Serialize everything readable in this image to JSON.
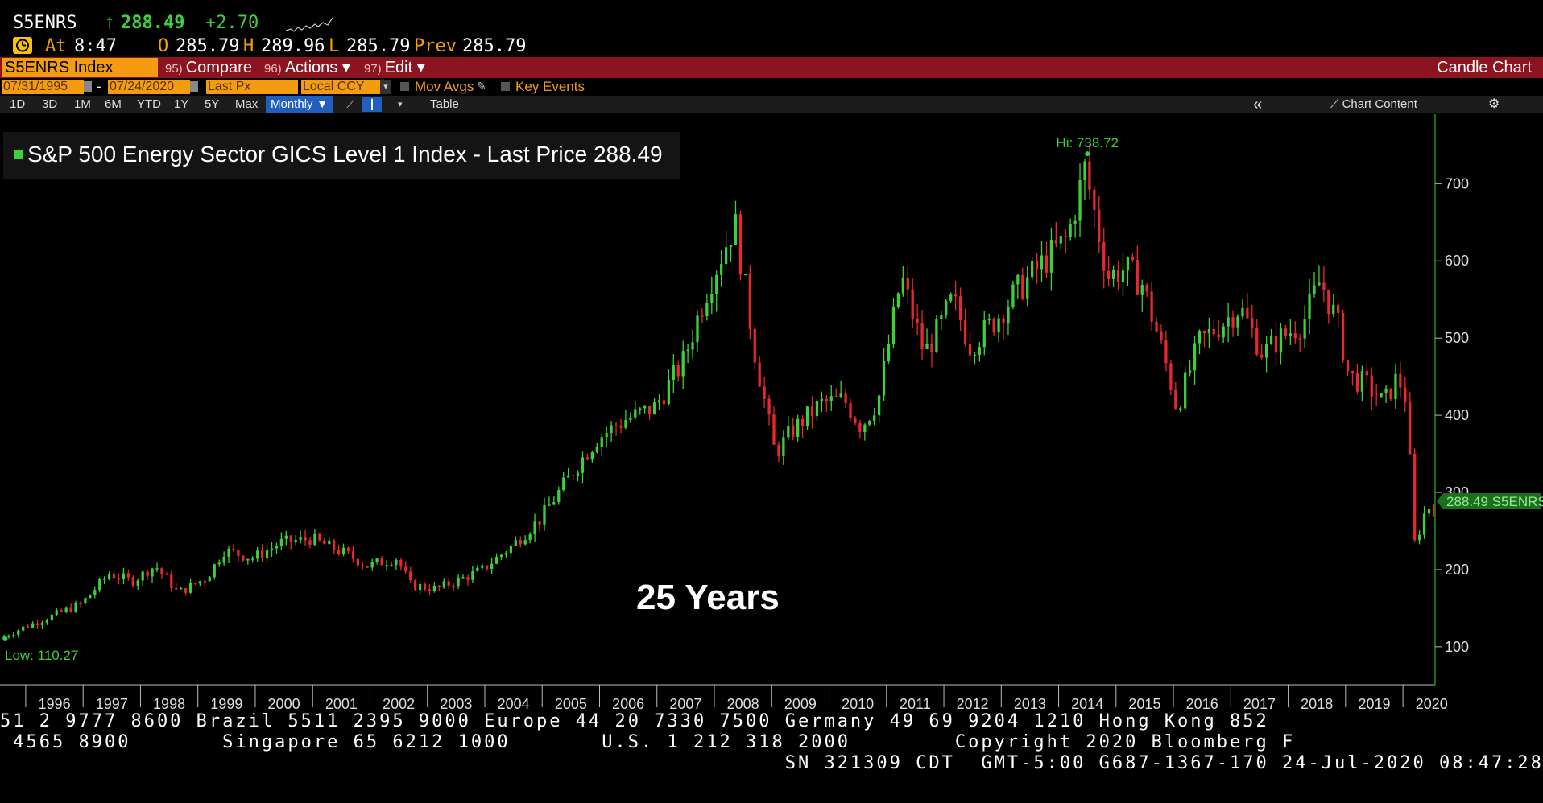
{
  "header": {
    "ticker": "S5ENRS",
    "arrow": "↑",
    "last": "288.49",
    "change": "+2.70",
    "at_label": "At",
    "at_time": "8:47",
    "open_label": "O",
    "open": "285.79",
    "high_label": "H",
    "high": "289.96",
    "low_label": "L",
    "low": "285.79",
    "prev_label": "Prev",
    "prev": "285.79"
  },
  "command_bar": {
    "security": "S5ENRS Index",
    "compare_num": "95)",
    "compare": "Compare",
    "actions_num": "96)",
    "actions": "Actions ▾",
    "edit_num": "97)",
    "edit": "Edit ▾",
    "chart_type": "Candle Chart"
  },
  "controls": {
    "start_date": "07/31/1995",
    "end_date": "07/24/2020",
    "date_sep": "-",
    "field": "Last Px",
    "currency": "Local CCY",
    "mov_avgs": "Mov Avgs",
    "key_events": "Key Events"
  },
  "periods": [
    "1D",
    "3D",
    "1M",
    "6M",
    "YTD",
    "1Y",
    "5Y",
    "Max"
  ],
  "period_selected": "Monthly ▼",
  "table_label": "Table",
  "collapse_label": "«",
  "chart_content": "Chart Content",
  "annotation": "25 Years",
  "tape": {
    "line1": "51 2 9777 8600 Brazil 5511 2395 9000 Europe 44 20 7330 7500 Germany 49 69 9204 1210 Hong Kong 852",
    "line2": " 4565 8900       Singapore 65 6212 1000       U.S. 1 212 318 2000        Copyright 2020 Bloomberg F",
    "line3": "                                                            SN 321309 CDT  GMT-5:00 G687-1367-170 24-Jul-2020 08:47:28"
  },
  "colors": {
    "up": "#3cd13c",
    "down": "#e8282c",
    "accent": "#f39c12",
    "bar": "#8c1420"
  },
  "chart_data": {
    "type": "candlestick",
    "title": "S&P 500 Energy Sector GICS Level 1 Index - Last Price 288.49",
    "frequency": "Monthly",
    "ylim": [
      55,
      790
    ],
    "yticks": [
      100,
      200,
      300,
      400,
      500,
      600,
      700
    ],
    "x_tick_labels": [
      "1996",
      "1997",
      "1998",
      "1999",
      "2000",
      "2001",
      "2002",
      "2003",
      "2004",
      "2005",
      "2006",
      "2007",
      "2008",
      "2009",
      "2010",
      "2011",
      "2012",
      "2013",
      "2014",
      "2015",
      "2016",
      "2017",
      "2018",
      "2019",
      "2020"
    ],
    "xlim": [
      1995.58,
      2020.56
    ],
    "hi_label": "Hi: 738.72",
    "hi": {
      "x": 2014.5,
      "y": 738.72
    },
    "low_label": "Low: 110.27",
    "low": {
      "x": 1995.6,
      "y": 110.27
    },
    "last_label": "288.49 S5ENRS",
    "last": 288.49,
    "anchors": [
      [
        1995.58,
        110.27
      ],
      [
        1996.0,
        125
      ],
      [
        1996.5,
        140
      ],
      [
        1997.0,
        155
      ],
      [
        1997.5,
        195
      ],
      [
        1997.9,
        185
      ],
      [
        1998.3,
        205
      ],
      [
        1998.7,
        170
      ],
      [
        1999.2,
        190
      ],
      [
        1999.5,
        225
      ],
      [
        2000.0,
        215
      ],
      [
        2000.5,
        235
      ],
      [
        2001.0,
        240
      ],
      [
        2001.5,
        225
      ],
      [
        2002.0,
        205
      ],
      [
        2002.5,
        215
      ],
      [
        2002.75,
        180
      ],
      [
        2003.2,
        175
      ],
      [
        2003.7,
        190
      ],
      [
        2004.0,
        200
      ],
      [
        2004.5,
        230
      ],
      [
        2005.0,
        265
      ],
      [
        2005.7,
        340
      ],
      [
        2006.0,
        370
      ],
      [
        2006.5,
        395
      ],
      [
        2007.0,
        410
      ],
      [
        2007.5,
        470
      ],
      [
        2007.9,
        560
      ],
      [
        2008.4,
        650
      ],
      [
        2008.75,
        480
      ],
      [
        2009.1,
        350
      ],
      [
        2009.4,
        380
      ],
      [
        2009.9,
        415
      ],
      [
        2010.3,
        420
      ],
      [
        2010.6,
        385
      ],
      [
        2010.9,
        420
      ],
      [
        2011.3,
        580
      ],
      [
        2011.7,
        480
      ],
      [
        2011.9,
        505
      ],
      [
        2012.2,
        550
      ],
      [
        2012.5,
        490
      ],
      [
        2012.9,
        520
      ],
      [
        2013.3,
        560
      ],
      [
        2013.8,
        600
      ],
      [
        2014.2,
        630
      ],
      [
        2014.5,
        720
      ],
      [
        2014.9,
        580
      ],
      [
        2015.2,
        590
      ],
      [
        2015.5,
        570
      ],
      [
        2015.9,
        470
      ],
      [
        2016.1,
        410
      ],
      [
        2016.5,
        495
      ],
      [
        2016.9,
        520
      ],
      [
        2017.2,
        540
      ],
      [
        2017.6,
        480
      ],
      [
        2017.9,
        500
      ],
      [
        2018.3,
        520
      ],
      [
        2018.6,
        575
      ],
      [
        2018.9,
        520
      ],
      [
        2019.1,
        450
      ],
      [
        2019.4,
        440
      ],
      [
        2019.7,
        415
      ],
      [
        2019.95,
        450
      ],
      [
        2020.1,
        420
      ],
      [
        2020.25,
        230
      ],
      [
        2020.4,
        270
      ],
      [
        2020.56,
        288.49
      ]
    ]
  }
}
